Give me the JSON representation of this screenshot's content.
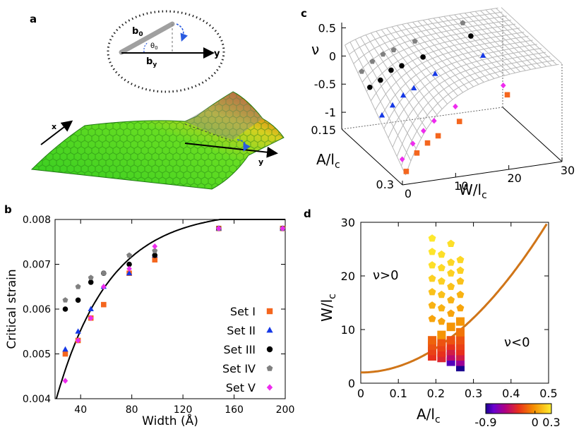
{
  "panel_a": {
    "letter": "a",
    "inset_labels": {
      "b0": "b",
      "b0_sub": "0",
      "theta": "θ",
      "theta_sub": "0",
      "by": "b",
      "by_sub": "y",
      "y_axis": "y"
    },
    "sheet_labels": {
      "x": "x",
      "y": "y"
    }
  },
  "chart_data": [
    {
      "id": "b",
      "letter": "b",
      "type": "scatter",
      "xlabel": "Width (Å)",
      "ylabel": "Critical strain",
      "xlim": [
        20,
        200
      ],
      "ylim": [
        0.004,
        0.008
      ],
      "xticks": [
        "40",
        "80",
        "120",
        "160",
        "200"
      ],
      "yticks": [
        "0.004",
        "0.005",
        "0.006",
        "0.007",
        "0.008"
      ],
      "fit_curve": {
        "formula": "0.0082 - 0.0042*exp(-(W-21)/42)"
      },
      "series": [
        {
          "name": "Set   I",
          "color": "#f4661e",
          "marker": "square",
          "points": [
            [
              28,
              0.005
            ],
            [
              38,
              0.0053
            ],
            [
              48,
              0.0058
            ],
            [
              58,
              0.0061
            ],
            [
              78,
              0.0068
            ],
            [
              98,
              0.0071
            ],
            [
              148,
              0.0078
            ],
            [
              198,
              0.0078
            ]
          ]
        },
        {
          "name": "Set  II",
          "color": "#1538e6",
          "marker": "triangle",
          "points": [
            [
              28,
              0.0051
            ],
            [
              38,
              0.0055
            ],
            [
              48,
              0.006
            ],
            [
              58,
              0.0065
            ],
            [
              78,
              0.0068
            ],
            [
              98,
              0.0072
            ],
            [
              148,
              0.0078
            ],
            [
              198,
              0.0078
            ]
          ]
        },
        {
          "name": "Set III",
          "color": "#000000",
          "marker": "circle",
          "points": [
            [
              28,
              0.006
            ],
            [
              38,
              0.0062
            ],
            [
              48,
              0.0066
            ],
            [
              58,
              0.0068
            ],
            [
              78,
              0.007
            ],
            [
              98,
              0.0072
            ],
            [
              148,
              0.0078
            ],
            [
              198,
              0.0078
            ]
          ]
        },
        {
          "name": "Set IV",
          "color": "#808080",
          "marker": "pentagon",
          "points": [
            [
              28,
              0.0062
            ],
            [
              38,
              0.0065
            ],
            [
              48,
              0.0067
            ],
            [
              58,
              0.0068
            ],
            [
              78,
              0.0072
            ],
            [
              98,
              0.0073
            ],
            [
              148,
              0.0078
            ],
            [
              198,
              0.0078
            ]
          ]
        },
        {
          "name": "Set  V",
          "color": "#ee2cee",
          "marker": "diamond",
          "points": [
            [
              28,
              0.0044
            ],
            [
              38,
              0.0053
            ],
            [
              48,
              0.0058
            ],
            [
              58,
              0.0065
            ],
            [
              78,
              0.0069
            ],
            [
              98,
              0.0074
            ],
            [
              148,
              0.0078
            ],
            [
              198,
              0.0078
            ]
          ]
        }
      ]
    },
    {
      "id": "c",
      "letter": "c",
      "type": "surface3d",
      "zlabel": "ν",
      "ylabel": "A/l",
      "ylabel_sub": "c",
      "xlabel": "W/l",
      "xlabel_sub": "c",
      "zticks": [
        "0.5",
        "0",
        "-0.5",
        "-1"
      ],
      "yticks": [
        "0.15",
        "0.3"
      ],
      "xticks": [
        "0",
        "10",
        "20",
        "30"
      ],
      "xlim": [
        0,
        30
      ],
      "ylim": [
        0.15,
        0.3
      ],
      "zlim": [
        -1.3,
        0.5
      ],
      "series": [
        {
          "name": "Set IV",
          "color": "#808080",
          "marker": "pentagon",
          "points": [
            [
              3,
              0.16,
              -0.25
            ],
            [
              5,
              0.16,
              -0.1
            ],
            [
              7,
              0.16,
              0.0
            ],
            [
              9,
              0.16,
              0.05
            ],
            [
              13,
              0.16,
              0.15
            ],
            [
              22,
              0.16,
              0.35
            ]
          ]
        },
        {
          "name": "Set III",
          "color": "#000000",
          "marker": "circle",
          "points": [
            [
              3,
              0.18,
              -0.4
            ],
            [
              5,
              0.18,
              -0.3
            ],
            [
              7,
              0.18,
              -0.15
            ],
            [
              9,
              0.18,
              -0.1
            ],
            [
              13,
              0.18,
              0.0
            ],
            [
              22,
              0.18,
              0.25
            ]
          ]
        },
        {
          "name": "Set II",
          "color": "#1538e6",
          "marker": "triangle",
          "points": [
            [
              3,
              0.21,
              -0.7
            ],
            [
              5,
              0.21,
              -0.55
            ],
            [
              7,
              0.21,
              -0.4
            ],
            [
              9,
              0.21,
              -0.3
            ],
            [
              13,
              0.21,
              -0.1
            ],
            [
              22,
              0.21,
              0.1
            ]
          ]
        },
        {
          "name": "Set V",
          "color": "#ee2cee",
          "marker": "diamond",
          "points": [
            [
              3,
              0.26,
              -1.15
            ],
            [
              5,
              0.26,
              -0.9
            ],
            [
              7,
              0.26,
              -0.7
            ],
            [
              9,
              0.26,
              -0.55
            ],
            [
              13,
              0.26,
              -0.35
            ],
            [
              22,
              0.26,
              -0.1
            ]
          ]
        },
        {
          "name": "Set I",
          "color": "#f4661e",
          "marker": "square",
          "points": [
            [
              3,
              0.27,
              -1.3
            ],
            [
              5,
              0.27,
              -1.0
            ],
            [
              7,
              0.27,
              -0.85
            ],
            [
              9,
              0.27,
              -0.75
            ],
            [
              13,
              0.27,
              -0.55
            ],
            [
              22,
              0.27,
              -0.2
            ]
          ]
        }
      ]
    },
    {
      "id": "d",
      "letter": "d",
      "type": "scatter",
      "xlabel": "A/l",
      "xlabel_sub": "c",
      "ylabel": "W/l",
      "ylabel_sub": "c",
      "xlim": [
        0,
        0.5
      ],
      "ylim": [
        0,
        30
      ],
      "xticks": [
        "0",
        "0.1",
        "0.2",
        "0.3",
        "0.4",
        "0.5"
      ],
      "yticks": [
        "0",
        "10",
        "20",
        "30"
      ],
      "boundary_curve": {
        "formula": "2 + 113*A^2",
        "color": "#d07518"
      },
      "region_labels": [
        "ν>0",
        "ν<0"
      ],
      "colorbar": {
        "min": -0.9,
        "max": 0.3,
        "ticks": [
          "-0.9",
          "0",
          "0.3"
        ]
      },
      "columns": [
        {
          "A": 0.19,
          "W": [
            5.0,
            6.0,
            7.0,
            8.0,
            12.0,
            14.5,
            17.0,
            19.5,
            22.0,
            24.5,
            27.0
          ],
          "nu": [
            -0.3,
            -0.25,
            -0.2,
            -0.15,
            0.05,
            0.1,
            0.15,
            0.2,
            0.25,
            0.27,
            0.28
          ]
        },
        {
          "A": 0.215,
          "W": [
            4.7,
            5.7,
            6.7,
            7.7,
            9.0,
            11.5,
            14.0,
            16.5,
            19.0,
            21.5,
            24.0
          ],
          "nu": [
            -0.35,
            -0.3,
            -0.25,
            -0.2,
            0.0,
            0.05,
            0.1,
            0.15,
            0.2,
            0.23,
            0.25
          ]
        },
        {
          "A": 0.24,
          "W": [
            4.0,
            5.0,
            6.0,
            7.0,
            8.0,
            10.5,
            13.0,
            15.5,
            18.0,
            20.5,
            22.5,
            26.0
          ],
          "nu": [
            -0.8,
            -0.5,
            -0.4,
            -0.3,
            -0.2,
            0.0,
            0.05,
            0.1,
            0.15,
            0.2,
            0.22,
            0.25
          ]
        },
        {
          "A": 0.265,
          "W": [
            3.0,
            4.0,
            5.0,
            6.0,
            7.0,
            8.0,
            9.5,
            11.5,
            14.0,
            16.5,
            19.0,
            21.0,
            23.0
          ],
          "nu": [
            -0.9,
            -0.6,
            -0.4,
            -0.3,
            -0.25,
            -0.2,
            -0.1,
            0.0,
            0.05,
            0.1,
            0.15,
            0.2,
            0.22
          ]
        }
      ]
    }
  ]
}
